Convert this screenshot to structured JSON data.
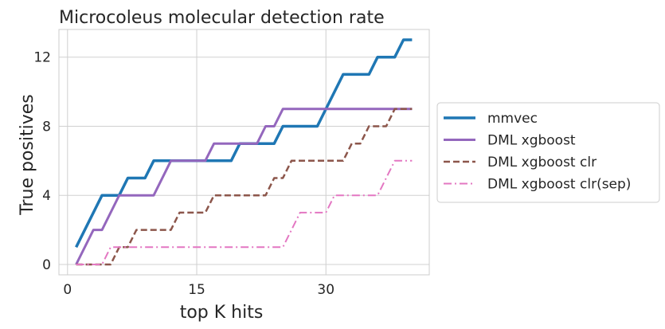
{
  "chart_data": {
    "type": "line",
    "title": "Microcoleus molecular detection rate",
    "xlabel": "top K hits",
    "ylabel": "True positives",
    "xlim": [
      -1,
      42
    ],
    "ylim": [
      -0.6,
      13.6
    ],
    "xticks": [
      0,
      15,
      30
    ],
    "yticks": [
      0,
      4,
      8,
      12
    ],
    "grid": true,
    "legend_position": "right-outside",
    "series": [
      {
        "name": "mmvec",
        "color": "#1f77b4",
        "style": "solid",
        "width": 3.5,
        "points": [
          [
            1,
            1
          ],
          [
            4,
            4
          ],
          [
            6,
            4
          ],
          [
            7,
            5
          ],
          [
            9,
            5
          ],
          [
            10,
            6
          ],
          [
            19,
            6
          ],
          [
            20,
            7
          ],
          [
            24,
            7
          ],
          [
            25,
            8
          ],
          [
            29,
            8
          ],
          [
            32,
            11
          ],
          [
            35,
            11
          ],
          [
            36,
            12
          ],
          [
            38,
            12
          ],
          [
            39,
            13
          ],
          [
            40,
            13
          ]
        ]
      },
      {
        "name": "DML xgboost",
        "color": "#9467bd",
        "style": "solid",
        "width": 3,
        "points": [
          [
            1,
            0
          ],
          [
            3,
            2
          ],
          [
            4,
            2
          ],
          [
            6,
            4
          ],
          [
            10,
            4
          ],
          [
            12,
            6
          ],
          [
            16,
            6
          ],
          [
            17,
            7
          ],
          [
            22,
            7
          ],
          [
            23,
            8
          ],
          [
            24,
            8
          ],
          [
            25,
            9
          ],
          [
            40,
            9
          ]
        ]
      },
      {
        "name": "DML xgboost clr",
        "color": "#8c564b",
        "style": "dashed",
        "width": 2.5,
        "points": [
          [
            1,
            0
          ],
          [
            5,
            0
          ],
          [
            6,
            1
          ],
          [
            7,
            1
          ],
          [
            8,
            2
          ],
          [
            12,
            2
          ],
          [
            13,
            3
          ],
          [
            16,
            3
          ],
          [
            17,
            4
          ],
          [
            23,
            4
          ],
          [
            24,
            5
          ],
          [
            25,
            5
          ],
          [
            26,
            6
          ],
          [
            32,
            6
          ],
          [
            33,
            7
          ],
          [
            34,
            7
          ],
          [
            35,
            8
          ],
          [
            37,
            8
          ],
          [
            38,
            9
          ],
          [
            40,
            9
          ]
        ]
      },
      {
        "name": "DML xgboost clr(sep)",
        "color": "#e377c2",
        "style": "dashdot",
        "width": 2,
        "points": [
          [
            1,
            0
          ],
          [
            4,
            0
          ],
          [
            5,
            1
          ],
          [
            25,
            1
          ],
          [
            27,
            3
          ],
          [
            30,
            3
          ],
          [
            31,
            4
          ],
          [
            36,
            4
          ],
          [
            38,
            6
          ],
          [
            40,
            6
          ]
        ]
      }
    ]
  }
}
